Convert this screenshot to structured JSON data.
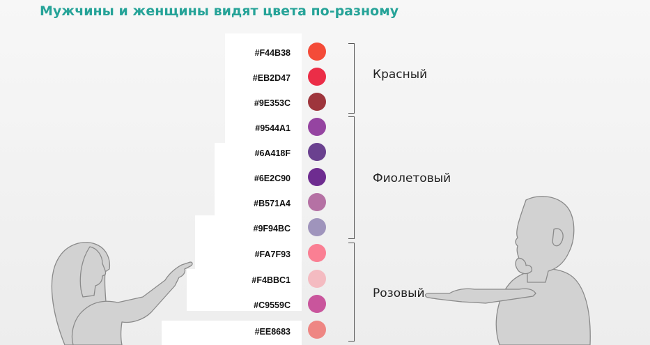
{
  "title": "Мужчины и женщины видят цвета по-разному",
  "swatches": [
    {
      "code": "#F44B38",
      "color": "#F44B38"
    },
    {
      "code": "#EB2D47",
      "color": "#EB2D47"
    },
    {
      "code": "#9E353C",
      "color": "#9E353C"
    },
    {
      "code": "#9544A1",
      "color": "#9544A1"
    },
    {
      "code": "#6A418F",
      "color": "#6A418F"
    },
    {
      "code": "#6E2C90",
      "color": "#6E2C90"
    },
    {
      "code": "#B571A4",
      "color": "#B571A4"
    },
    {
      "code": "#9F94BC",
      "color": "#9F94BC"
    },
    {
      "code": "#FA7F93",
      "color": "#FA7F93"
    },
    {
      "code": "#F4BBC1",
      "color": "#F4BBC1"
    },
    {
      "code": "#C9559C",
      "color": "#C9559C"
    },
    {
      "code": "#EE8683",
      "color": "#EE8683"
    }
  ],
  "groups": [
    {
      "label": "Красный"
    },
    {
      "label": "Фиолетовый"
    },
    {
      "label": "Розовый"
    }
  ],
  "figures": {
    "left": "woman-pointing-illustration",
    "right": "man-thinking-illustration"
  }
}
